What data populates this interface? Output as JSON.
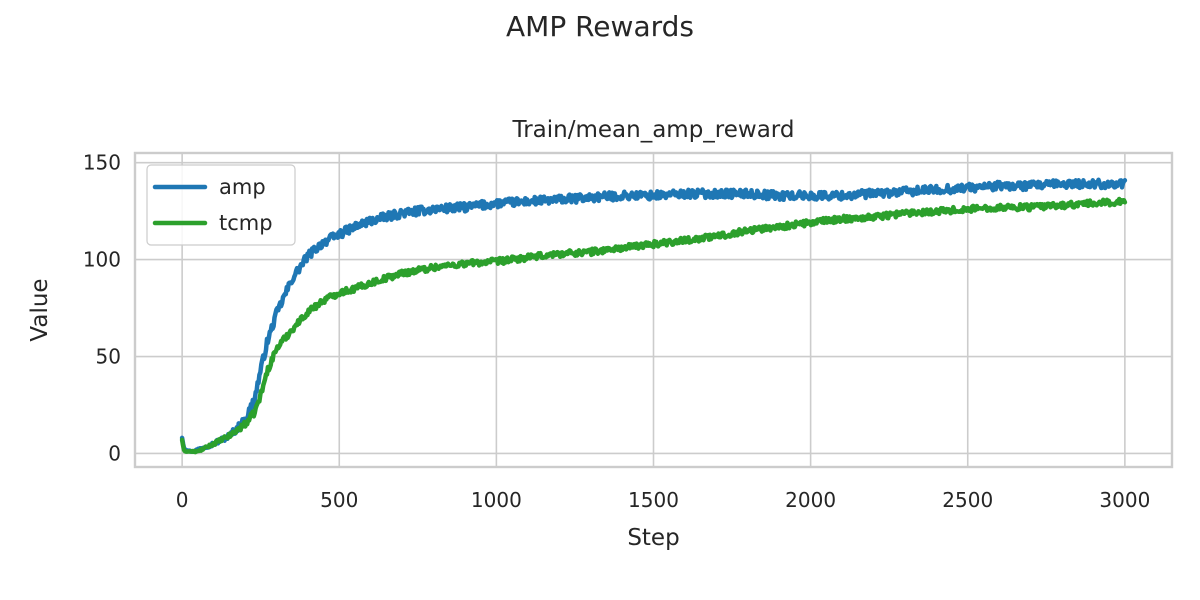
{
  "figure": {
    "suptitle": "AMP Rewards"
  },
  "chart_data": {
    "type": "line",
    "title": "Train/mean_amp_reward",
    "xlabel": "Step",
    "ylabel": "Value",
    "xlim": [
      -150,
      3150
    ],
    "ylim": [
      -7,
      155
    ],
    "xticks": [
      0,
      500,
      1000,
      1500,
      2000,
      2500,
      3000
    ],
    "yticks": [
      0,
      50,
      100,
      150
    ],
    "grid": true,
    "legend_position": "top-left",
    "series": [
      {
        "name": "amp",
        "color": "#1f77b4",
        "noise": 2.2,
        "x": [
          0,
          5,
          10,
          30,
          50,
          100,
          150,
          200,
          230,
          250,
          270,
          300,
          350,
          400,
          450,
          500,
          550,
          600,
          700,
          800,
          900,
          1000,
          1100,
          1200,
          1300,
          1400,
          1500,
          1600,
          1700,
          1800,
          1900,
          2000,
          2100,
          2200,
          2300,
          2400,
          2500,
          2600,
          2700,
          2800,
          2900,
          3000
        ],
        "y": [
          8,
          3,
          2,
          1,
          2,
          5,
          9,
          17,
          28,
          43,
          57,
          72,
          90,
          102,
          109,
          113,
          117,
          120,
          124,
          126,
          127,
          129,
          130,
          131,
          132,
          133,
          133,
          134,
          134,
          134,
          133,
          133,
          133,
          134,
          135,
          136,
          137,
          138,
          138,
          139,
          139,
          139
        ]
      },
      {
        "name": "tcmp",
        "color": "#2ca02c",
        "noise": 1.6,
        "x": [
          0,
          5,
          10,
          30,
          50,
          100,
          150,
          200,
          230,
          250,
          270,
          300,
          350,
          400,
          450,
          500,
          550,
          600,
          700,
          800,
          900,
          1000,
          1100,
          1200,
          1300,
          1400,
          1500,
          1600,
          1700,
          1800,
          1900,
          2000,
          2100,
          2200,
          2300,
          2400,
          2500,
          2600,
          2700,
          2800,
          2900,
          3000
        ],
        "y": [
          7,
          2,
          1,
          1,
          1,
          5,
          9,
          15,
          21,
          30,
          42,
          54,
          64,
          73,
          79,
          83,
          85,
          88,
          93,
          96,
          98,
          99,
          101,
          103,
          104,
          106,
          108,
          110,
          112,
          115,
          117,
          119,
          121,
          122,
          124,
          125,
          126,
          127,
          127,
          128,
          129,
          130
        ]
      }
    ]
  }
}
